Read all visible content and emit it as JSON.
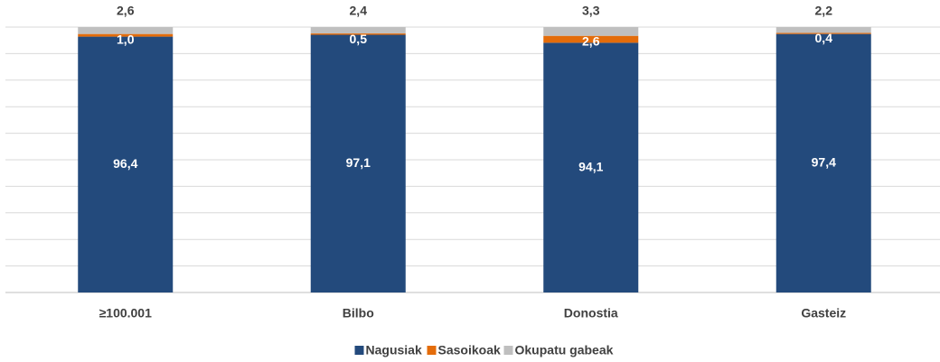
{
  "chart_data": {
    "type": "stacked-bar",
    "categories": [
      "≥100.001",
      "Bilbo",
      "Donostia",
      "Gasteiz"
    ],
    "series": [
      {
        "name": "Nagusiak",
        "color": "#234a7c",
        "values": [
          96.4,
          97.1,
          94.1,
          97.4
        ],
        "value_labels": [
          "96,4",
          "97,1",
          "94,1",
          "97,4"
        ]
      },
      {
        "name": "Sasoikoak",
        "color": "#e46c0a",
        "values": [
          1.0,
          0.5,
          2.6,
          0.4
        ],
        "value_labels": [
          "1,0",
          "0,5",
          "2,6",
          "0,4"
        ]
      },
      {
        "name": "Okupatu gabeak",
        "color": "#bfbfbf",
        "values": [
          2.6,
          2.4,
          3.3,
          2.2
        ],
        "value_labels": [
          "2,6",
          "2,4",
          "3,3",
          "2,2"
        ]
      }
    ],
    "ylim": [
      0,
      100
    ],
    "yticks": [
      0,
      10,
      20,
      30,
      40,
      50,
      60,
      70,
      80,
      90,
      100
    ],
    "grid": true,
    "legend": "bottom"
  }
}
